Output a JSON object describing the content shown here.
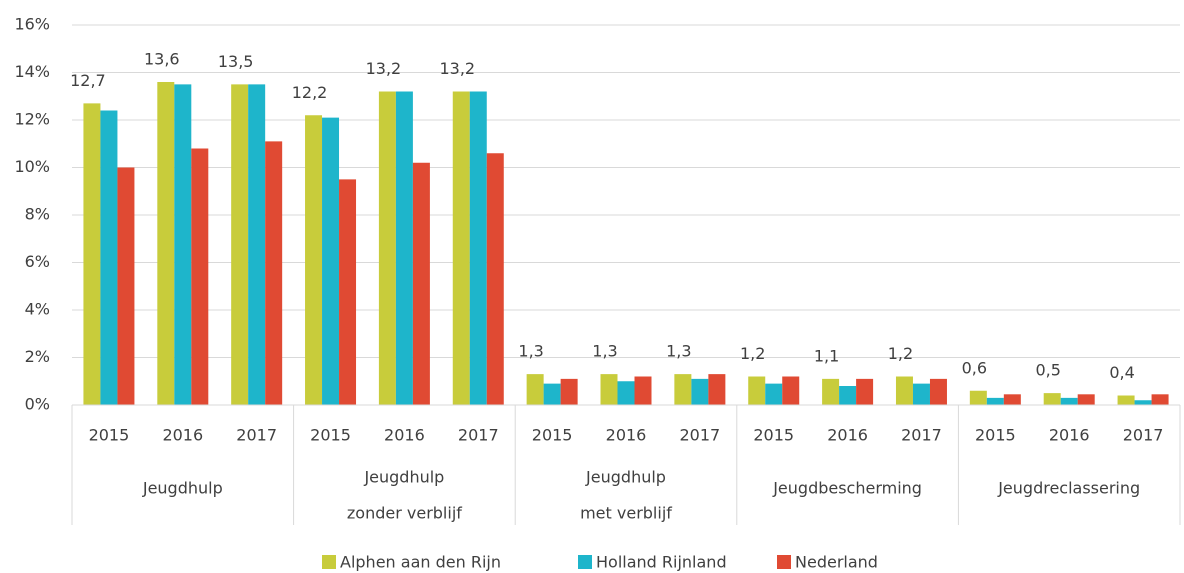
{
  "chart_data": {
    "type": "bar",
    "groups": [
      {
        "name": [
          "Jeugdhulp"
        ],
        "categories": [
          "2015",
          "2016",
          "2017"
        ]
      },
      {
        "name": [
          "Jeugdhulp",
          "zonder verblijf"
        ],
        "categories": [
          "2015",
          "2016",
          "2017"
        ]
      },
      {
        "name": [
          "Jeugdhulp",
          "met verblijf"
        ],
        "categories": [
          "2015",
          "2016",
          "2017"
        ]
      },
      {
        "name": [
          "Jeugdbescherming"
        ],
        "categories": [
          "2015",
          "2016",
          "2017"
        ]
      },
      {
        "name": [
          "Jeugdreclassering"
        ],
        "categories": [
          "2015",
          "2016",
          "2017"
        ]
      }
    ],
    "series": [
      {
        "name": "Alphen aan den Rijn",
        "color": "#c8cc3b",
        "values": [
          12.7,
          13.6,
          13.5,
          12.2,
          13.2,
          13.2,
          1.3,
          1.3,
          1.3,
          1.2,
          1.1,
          1.2,
          0.6,
          0.5,
          0.4
        ],
        "value_labels": [
          "12,7",
          "13,6",
          "13,5",
          "12,2",
          "13,2",
          "13,2",
          "1,3",
          "1,3",
          "1,3",
          "1,2",
          "1,1",
          "1,2",
          "0,6",
          "0,5",
          "0,4"
        ]
      },
      {
        "name": "Holland Rijnland",
        "color": "#1eb5cb",
        "values": [
          12.4,
          13.5,
          13.5,
          12.1,
          13.2,
          13.2,
          0.9,
          1.0,
          1.1,
          0.9,
          0.8,
          0.9,
          0.3,
          0.3,
          0.2
        ]
      },
      {
        "name": "Nederland",
        "color": "#e04a33",
        "values": [
          10.0,
          10.8,
          11.1,
          9.5,
          10.2,
          10.6,
          1.1,
          1.2,
          1.3,
          1.2,
          1.1,
          1.1,
          0.45,
          0.45,
          0.45
        ]
      }
    ],
    "ylim": [
      0,
      16
    ],
    "yticks": [
      {
        "value": 0,
        "label": "0%"
      },
      {
        "value": 2,
        "label": "2%"
      },
      {
        "value": 4,
        "label": "4%"
      },
      {
        "value": 6,
        "label": "6%"
      },
      {
        "value": 8,
        "label": "8%"
      },
      {
        "value": 10,
        "label": "10%"
      },
      {
        "value": 12,
        "label": "12%"
      },
      {
        "value": 14,
        "label": "14%"
      },
      {
        "value": 16,
        "label": "16%"
      }
    ],
    "grid": true,
    "legend": "bottom"
  }
}
